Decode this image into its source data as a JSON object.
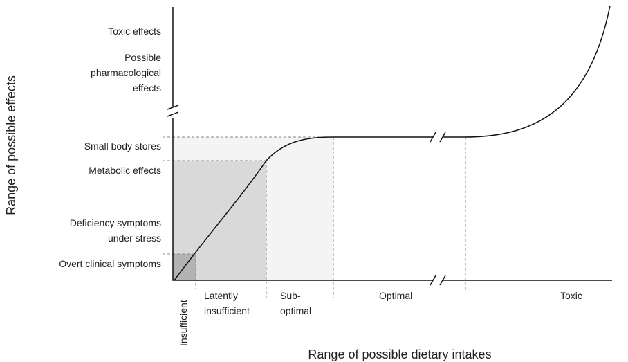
{
  "y_axis_label": "Range of possible effects",
  "x_axis_label": "Range of possible dietary intakes",
  "effect_levels": [
    {
      "lines": [
        "Toxic effects"
      ]
    },
    {
      "lines": [
        "Possible",
        "pharmacological",
        "effects"
      ]
    },
    {
      "lines": [
        "Small body stores"
      ]
    },
    {
      "lines": [
        "Metabolic effects"
      ]
    },
    {
      "lines": [
        "Deficiency symptoms",
        "under stress"
      ]
    },
    {
      "lines": [
        "Overt clinical symptoms"
      ]
    }
  ],
  "intake_zones": [
    {
      "lines": [
        "Insufficient"
      ]
    },
    {
      "lines": [
        "Latently",
        "insufficient"
      ]
    },
    {
      "lines": [
        "Sub-",
        "optimal"
      ]
    },
    {
      "lines": [
        "Optimal"
      ]
    },
    {
      "lines": [
        "Toxic"
      ]
    }
  ]
}
